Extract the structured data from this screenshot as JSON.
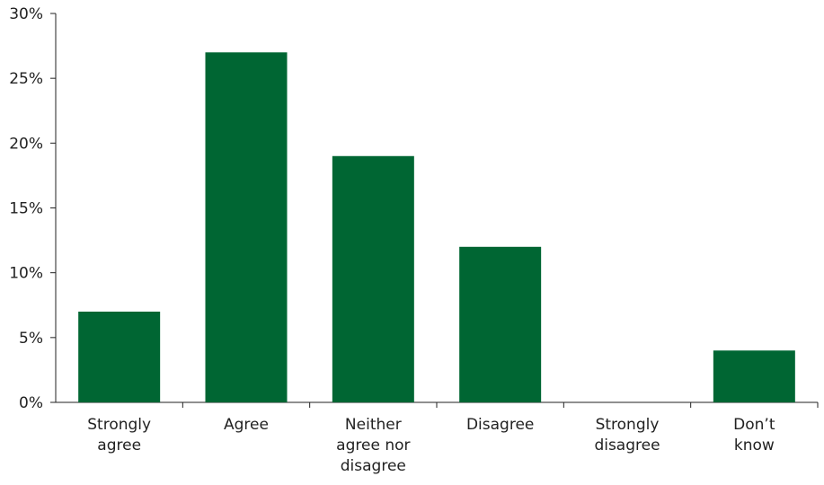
{
  "chart_data": {
    "type": "bar",
    "title": "",
    "xlabel": "",
    "ylabel": "",
    "categories": [
      [
        "Strongly",
        "agree"
      ],
      [
        "Agree"
      ],
      [
        "Neither",
        "agree nor",
        "disagree"
      ],
      [
        "Disagree"
      ],
      [
        "Strongly",
        "disagree"
      ],
      [
        "Don’t",
        "know"
      ]
    ],
    "values": [
      7,
      27,
      19,
      12,
      0,
      4
    ],
    "ylim": [
      0,
      30
    ],
    "yticks": [
      0,
      5,
      10,
      15,
      20,
      25,
      30
    ],
    "ytick_labels": [
      "0%",
      "5%",
      "10%",
      "15%",
      "20%",
      "25%",
      "30%"
    ],
    "grid": false,
    "legend": "none",
    "bar_color": "#006633",
    "axis_color": "#222222"
  }
}
